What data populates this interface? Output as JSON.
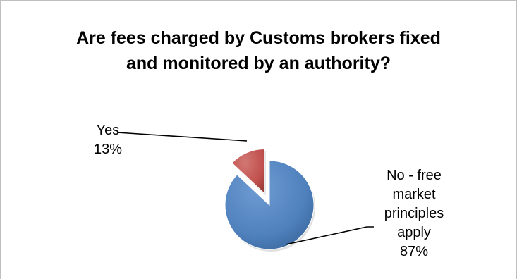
{
  "chart_data": {
    "type": "pie",
    "title_lines": [
      "Are fees charged by Customs brokers fixed",
      "and monitored by an authority?"
    ],
    "slices": [
      {
        "label_lines": [
          "Yes"
        ],
        "percent_label": "13%",
        "value": 13,
        "color": "#c0504d",
        "exploded": true
      },
      {
        "label_lines": [
          "No - free",
          "market",
          "principles",
          "apply"
        ],
        "percent_label": "87%",
        "value": 87,
        "color": "#4f81bd",
        "exploded": false
      }
    ],
    "legend": "none"
  }
}
